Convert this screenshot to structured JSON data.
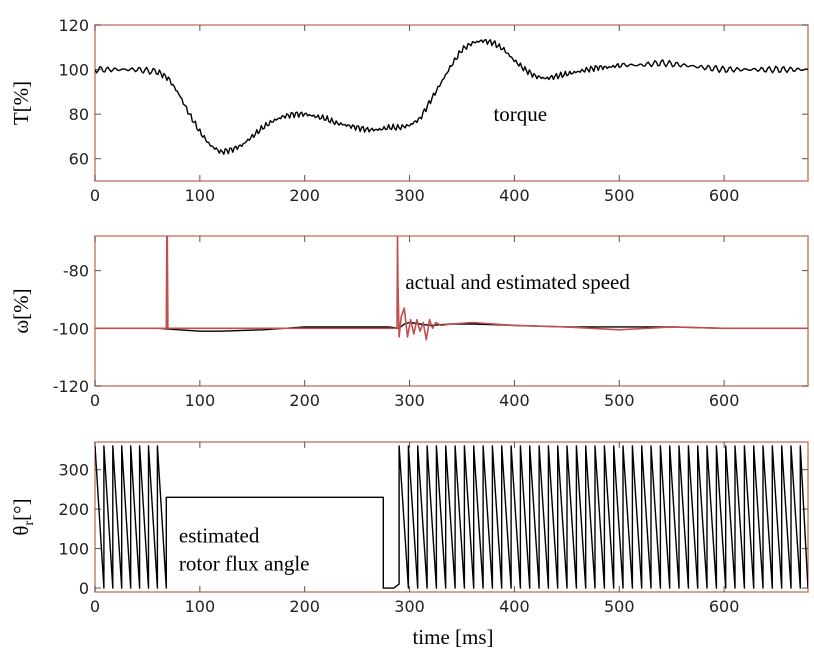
{
  "chart_data": [
    {
      "type": "line",
      "ylabel": "T[%]",
      "xlim": [
        0,
        680
      ],
      "ylim": [
        50,
        120
      ],
      "xticks": [
        0,
        100,
        200,
        300,
        400,
        500,
        600
      ],
      "yticks": [
        60,
        80,
        100,
        120
      ],
      "grid": false,
      "annotation": {
        "text": "torque",
        "x": 380,
        "y": 80
      },
      "series": [
        {
          "color": "#000000",
          "x": [
            0,
            20,
            40,
            60,
            70,
            80,
            90,
            100,
            110,
            120,
            130,
            140,
            150,
            160,
            170,
            180,
            190,
            200,
            210,
            220,
            230,
            240,
            250,
            260,
            270,
            280,
            290,
            300,
            310,
            320,
            330,
            340,
            350,
            360,
            370,
            380,
            390,
            400,
            410,
            420,
            430,
            440,
            450,
            460,
            470,
            480,
            490,
            500,
            520,
            540,
            560,
            580,
            600,
            620,
            640,
            660,
            680
          ],
          "y": [
            100,
            100,
            100,
            99,
            96,
            89,
            80,
            72,
            66,
            63,
            64,
            66,
            70,
            74,
            77,
            79,
            80,
            80,
            79,
            78,
            76,
            75,
            74,
            73,
            73,
            74,
            74,
            75,
            78,
            86,
            94,
            102,
            109,
            112,
            113,
            112,
            109,
            104,
            100,
            97,
            96,
            97,
            98,
            99,
            100,
            101,
            101,
            102,
            102,
            103,
            102,
            101,
            100,
            100,
            100,
            100,
            100
          ]
        }
      ]
    },
    {
      "type": "line",
      "ylabel": "ω[%]",
      "xlim": [
        0,
        680
      ],
      "ylim": [
        -120,
        -68
      ],
      "xticks": [
        0,
        100,
        200,
        300,
        400,
        500,
        600
      ],
      "yticks": [
        -120,
        -100,
        -80
      ],
      "grid": false,
      "annotation": {
        "text": "actual and estimated speed",
        "x": 296,
        "y": -84
      },
      "series": [
        {
          "color": "#000000",
          "x": [
            0,
            60,
            80,
            100,
            120,
            160,
            200,
            240,
            280,
            290,
            295,
            300,
            310,
            320,
            340,
            360,
            400,
            450,
            500,
            550,
            600,
            680
          ],
          "y": [
            -100,
            -100,
            -100.5,
            -101,
            -101,
            -100.5,
            -99.5,
            -99.5,
            -99.5,
            -100,
            -98.5,
            -98,
            -98.5,
            -99,
            -98.5,
            -98.5,
            -99,
            -99.5,
            -99.5,
            -99.5,
            -100,
            -100
          ]
        },
        {
          "color": "#c0504d",
          "x": [
            0,
            68,
            68.5,
            69,
            69.5,
            70,
            80,
            280,
            288,
            288.5,
            289,
            290,
            292,
            295,
            298,
            301,
            304,
            307,
            310,
            313,
            316,
            319,
            322,
            325,
            330,
            340,
            360,
            400,
            450,
            500,
            550,
            600,
            680
          ],
          "y": [
            -100,
            -100,
            -68,
            -68,
            -100,
            -100,
            -100,
            -100,
            -100,
            -68,
            -85,
            -103,
            -96,
            -93,
            -103,
            -97,
            -102,
            -97,
            -101,
            -98,
            -104,
            -97,
            -100,
            -98,
            -99,
            -98.5,
            -98,
            -99,
            -99.5,
            -100.5,
            -99.5,
            -100,
            -100
          ]
        }
      ]
    },
    {
      "type": "line",
      "ylabel": "θr[°]",
      "xlim": [
        0,
        680
      ],
      "ylim": [
        -10,
        370
      ],
      "xticks": [
        0,
        100,
        200,
        300,
        400,
        500,
        600
      ],
      "yticks": [
        0,
        100,
        200,
        300
      ],
      "grid": false,
      "annotation": {
        "lines": [
          "estimated",
          "rotor flux angle"
        ],
        "x": 80,
        "y": 115
      },
      "series": [
        {
          "color": "#000000",
          "style": "sawtooth",
          "segments": [
            {
              "x_start": 0,
              "x_end": 68,
              "period": 8.5,
              "min": 0,
              "max": 360
            },
            {
              "x_start": 290,
              "x_end": 680,
              "period": 8.9,
              "min": 0,
              "max": 360
            }
          ],
          "x": [
            68,
            70,
            275,
            275,
            285,
            290
          ],
          "y": [
            230,
            230,
            230,
            0,
            0,
            10
          ]
        }
      ]
    }
  ],
  "xlabel": "time [ms]"
}
